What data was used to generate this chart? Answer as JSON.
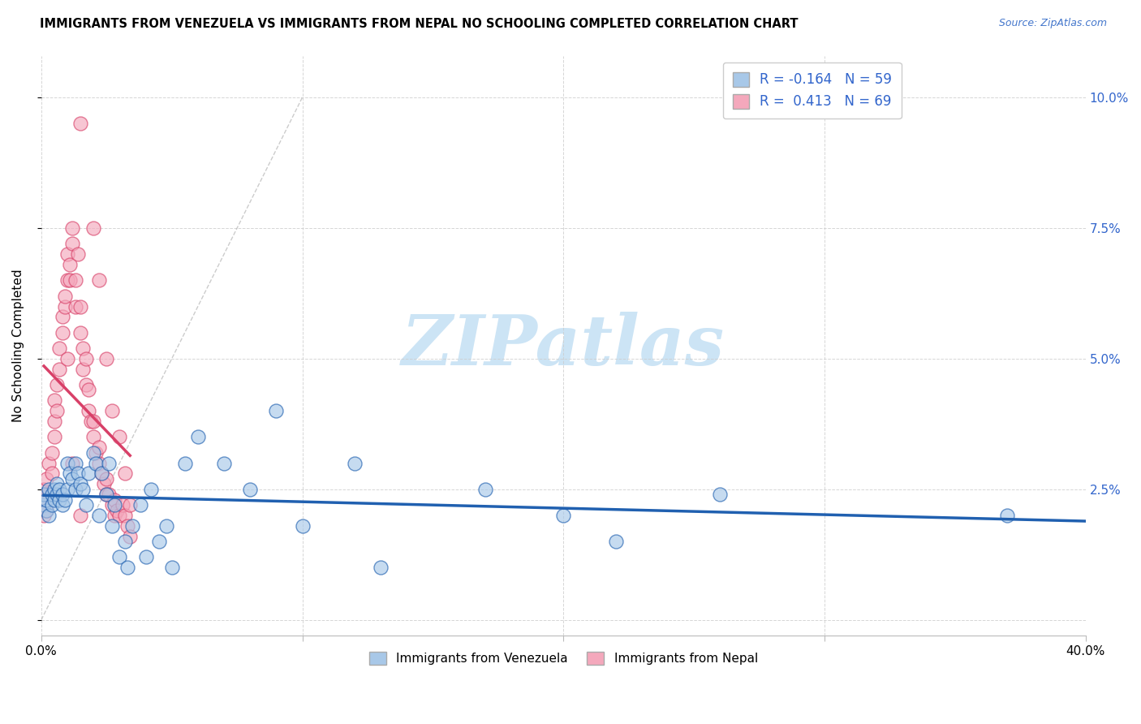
{
  "title": "IMMIGRANTS FROM VENEZUELA VS IMMIGRANTS FROM NEPAL NO SCHOOLING COMPLETED CORRELATION CHART",
  "source": "Source: ZipAtlas.com",
  "ylabel": "No Schooling Completed",
  "xlim": [
    0.0,
    0.4
  ],
  "ylim": [
    -0.003,
    0.108
  ],
  "ytick_positions": [
    0.0,
    0.025,
    0.05,
    0.075,
    0.1
  ],
  "ytick_labels_right": [
    "",
    "2.5%",
    "5.0%",
    "7.5%",
    "10.0%"
  ],
  "xtick_positions": [
    0.0,
    0.1,
    0.2,
    0.3,
    0.4
  ],
  "xtick_labels": [
    "0.0%",
    "",
    "",
    "",
    "40.0%"
  ],
  "legend_line1_r": "R = -0.164",
  "legend_line1_n": "N = 59",
  "legend_line2_r": "R =  0.413",
  "legend_line2_n": "N = 69",
  "color_venezuela": "#a8c8e8",
  "color_nepal": "#f4a8bc",
  "line_color_venezuela": "#2060b0",
  "line_color_nepal": "#d84068",
  "watermark_text": "ZIPatlas",
  "watermark_color": "#cce4f5",
  "background_color": "#ffffff",
  "title_fontsize": 10.5,
  "source_fontsize": 9,
  "venezuela_x": [
    0.001,
    0.001,
    0.002,
    0.002,
    0.003,
    0.003,
    0.004,
    0.004,
    0.005,
    0.005,
    0.006,
    0.006,
    0.007,
    0.007,
    0.008,
    0.008,
    0.009,
    0.01,
    0.01,
    0.011,
    0.012,
    0.013,
    0.013,
    0.014,
    0.015,
    0.016,
    0.017,
    0.018,
    0.02,
    0.021,
    0.022,
    0.023,
    0.025,
    0.026,
    0.027,
    0.028,
    0.03,
    0.032,
    0.033,
    0.035,
    0.038,
    0.04,
    0.042,
    0.045,
    0.048,
    0.05,
    0.055,
    0.06,
    0.07,
    0.08,
    0.09,
    0.1,
    0.12,
    0.13,
    0.17,
    0.2,
    0.22,
    0.26,
    0.37
  ],
  "venezuela_y": [
    0.022,
    0.024,
    0.021,
    0.023,
    0.02,
    0.025,
    0.022,
    0.024,
    0.023,
    0.025,
    0.024,
    0.026,
    0.023,
    0.025,
    0.022,
    0.024,
    0.023,
    0.03,
    0.025,
    0.028,
    0.027,
    0.03,
    0.025,
    0.028,
    0.026,
    0.025,
    0.022,
    0.028,
    0.032,
    0.03,
    0.02,
    0.028,
    0.024,
    0.03,
    0.018,
    0.022,
    0.012,
    0.015,
    0.01,
    0.018,
    0.022,
    0.012,
    0.025,
    0.015,
    0.018,
    0.01,
    0.03,
    0.035,
    0.03,
    0.025,
    0.04,
    0.018,
    0.03,
    0.01,
    0.025,
    0.02,
    0.015,
    0.024,
    0.02
  ],
  "nepal_x": [
    0.001,
    0.001,
    0.001,
    0.002,
    0.002,
    0.002,
    0.003,
    0.003,
    0.004,
    0.004,
    0.005,
    0.005,
    0.005,
    0.006,
    0.006,
    0.007,
    0.007,
    0.008,
    0.008,
    0.009,
    0.009,
    0.01,
    0.01,
    0.011,
    0.011,
    0.012,
    0.012,
    0.013,
    0.013,
    0.014,
    0.015,
    0.015,
    0.016,
    0.016,
    0.017,
    0.017,
    0.018,
    0.018,
    0.019,
    0.02,
    0.02,
    0.021,
    0.022,
    0.022,
    0.023,
    0.024,
    0.025,
    0.025,
    0.026,
    0.027,
    0.028,
    0.028,
    0.029,
    0.03,
    0.031,
    0.032,
    0.033,
    0.034,
    0.015,
    0.02,
    0.022,
    0.025,
    0.027,
    0.03,
    0.032,
    0.034,
    0.01,
    0.012,
    0.015
  ],
  "nepal_y": [
    0.02,
    0.022,
    0.025,
    0.021,
    0.024,
    0.027,
    0.024,
    0.03,
    0.028,
    0.032,
    0.035,
    0.038,
    0.042,
    0.04,
    0.045,
    0.048,
    0.052,
    0.055,
    0.058,
    0.06,
    0.062,
    0.065,
    0.07,
    0.065,
    0.068,
    0.072,
    0.075,
    0.06,
    0.065,
    0.07,
    0.055,
    0.06,
    0.048,
    0.052,
    0.045,
    0.05,
    0.04,
    0.044,
    0.038,
    0.035,
    0.038,
    0.032,
    0.03,
    0.033,
    0.028,
    0.026,
    0.024,
    0.027,
    0.024,
    0.022,
    0.02,
    0.023,
    0.021,
    0.02,
    0.022,
    0.02,
    0.018,
    0.016,
    0.095,
    0.075,
    0.065,
    0.05,
    0.04,
    0.035,
    0.028,
    0.022,
    0.05,
    0.03,
    0.02
  ]
}
